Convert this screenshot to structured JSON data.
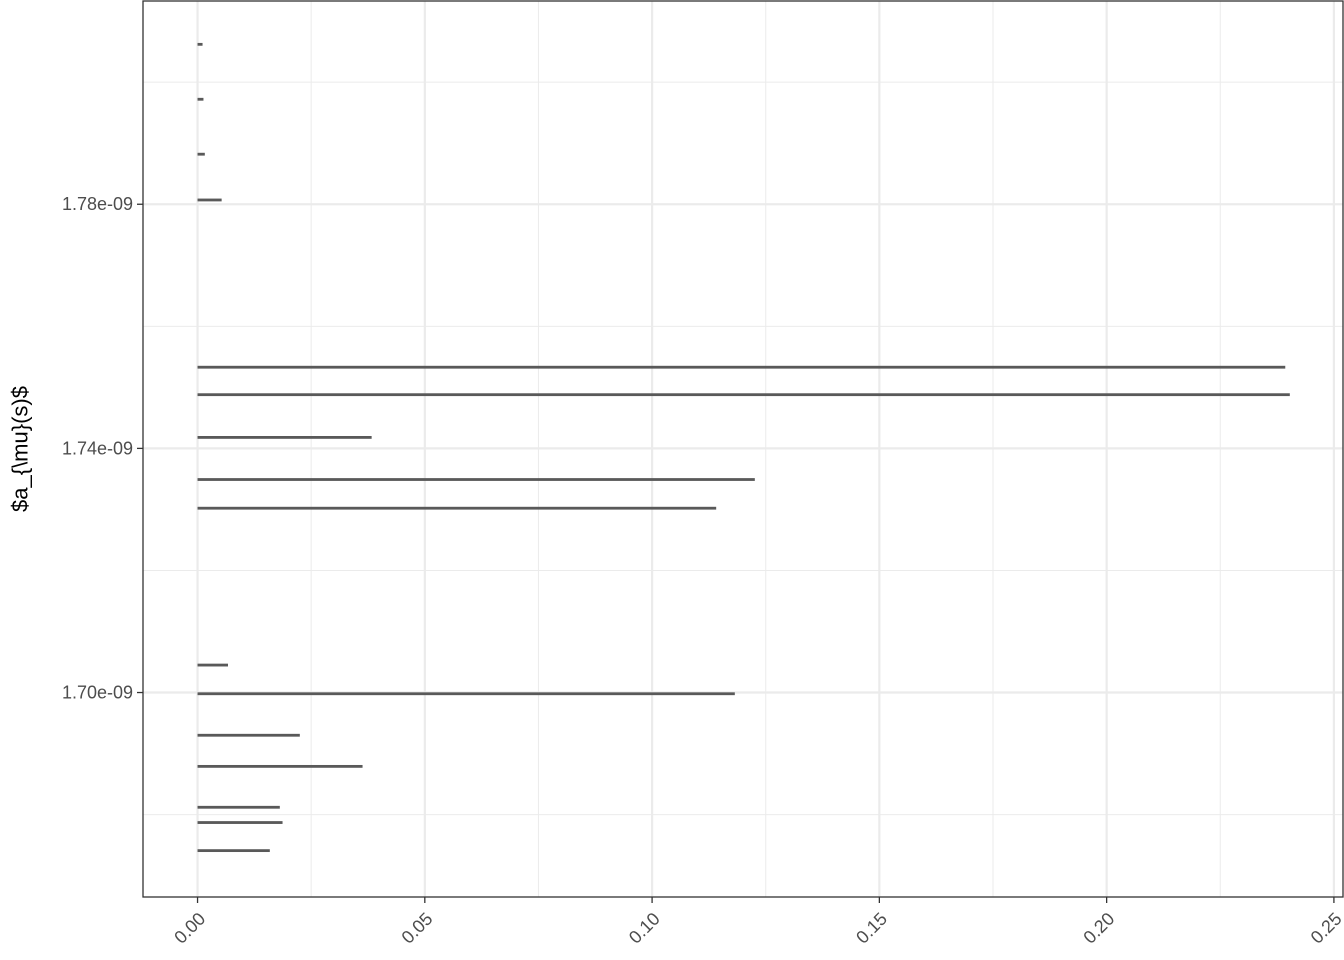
{
  "chart_data": {
    "type": "bar",
    "orientation": "horizontal",
    "title": "",
    "xlabel": "",
    "ylabel": "$a_{\\mu}(s)$",
    "xlim": [
      -0.012,
      0.252
    ],
    "ylim": [
      1.6665e-09,
      1.8133e-09
    ],
    "x_ticks": [
      0.0,
      0.05,
      0.1,
      0.15,
      0.2,
      0.25
    ],
    "x_tick_labels": [
      "0.00",
      "0.05",
      "0.10",
      "0.15",
      "0.20",
      "0.25"
    ],
    "y_ticks": [
      1.7e-09,
      1.74e-09,
      1.78e-09
    ],
    "y_tick_labels": [
      "1.70e-09",
      "1.74e-09",
      "1.78e-09"
    ],
    "grid": true,
    "legend": "none",
    "bar_color": "#595959",
    "bars": [
      {
        "y": 1.6741e-09,
        "height": 4.6e-13,
        "value": 0.0159
      },
      {
        "y": 1.6787e-09,
        "height": 4.6e-13,
        "value": 0.0187
      },
      {
        "y": 1.6812e-09,
        "height": 4.6e-13,
        "value": 0.0181
      },
      {
        "y": 1.6879e-09,
        "height": 4.6e-13,
        "value": 0.0363
      },
      {
        "y": 1.693e-09,
        "height": 4.6e-13,
        "value": 0.0225
      },
      {
        "y": 1.6998e-09,
        "height": 4.6e-13,
        "value": 0.1182
      },
      {
        "y": 1.7045e-09,
        "height": 4.6e-13,
        "value": 0.0067
      },
      {
        "y": 1.7302e-09,
        "height": 4.6e-13,
        "value": 0.1141
      },
      {
        "y": 1.7349e-09,
        "height": 4.6e-13,
        "value": 0.1226
      },
      {
        "y": 1.7418e-09,
        "height": 4.6e-13,
        "value": 0.0383
      },
      {
        "y": 1.7488e-09,
        "height": 4.6e-13,
        "value": 0.2403
      },
      {
        "y": 1.7533e-09,
        "height": 4.6e-13,
        "value": 0.2393
      },
      {
        "y": 1.7807e-09,
        "height": 4.6e-13,
        "value": 0.0053
      },
      {
        "y": 1.7882e-09,
        "height": 4.6e-13,
        "value": 0.0016
      },
      {
        "y": 1.7972e-09,
        "height": 4.6e-13,
        "value": 0.0013
      },
      {
        "y": 1.8062e-09,
        "height": 4.6e-13,
        "value": 0.0011
      }
    ]
  }
}
